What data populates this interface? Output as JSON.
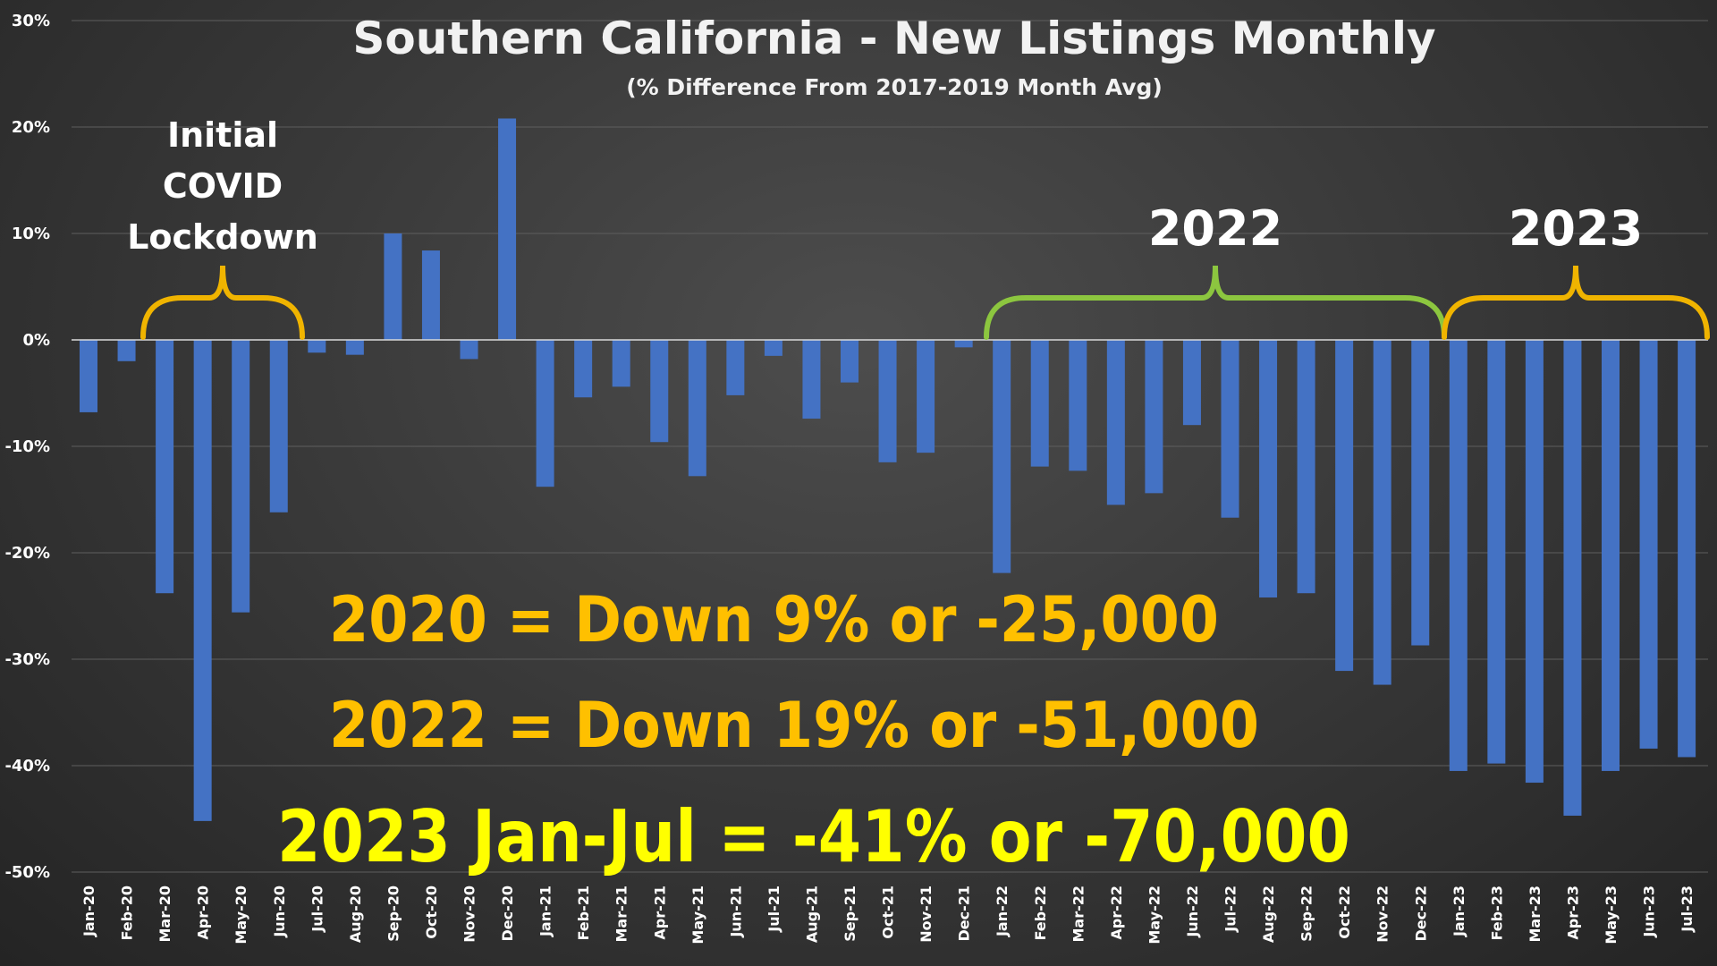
{
  "chart_data": {
    "type": "bar",
    "title": "Southern California - New Listings Monthly",
    "subtitle": "(% Difference From 2017-2019 Month Avg)",
    "ylim": [
      -50,
      30
    ],
    "yticks": [
      30,
      20,
      10,
      0,
      -10,
      -20,
      -30,
      -40,
      -50
    ],
    "ytick_labels": [
      "30%",
      "20%",
      "10%",
      "0%",
      "-10%",
      "-20%",
      "-30%",
      "-40%",
      "-50%"
    ],
    "grid": true,
    "bar_color": "#4472c4",
    "categories": [
      "Jan-20",
      "Feb-20",
      "Mar-20",
      "Apr-20",
      "May-20",
      "Jun-20",
      "Jul-20",
      "Aug-20",
      "Sep-20",
      "Oct-20",
      "Nov-20",
      "Dec-20",
      "Jan-21",
      "Feb-21",
      "Mar-21",
      "Apr-21",
      "May-21",
      "Jun-21",
      "Jul-21",
      "Aug-21",
      "Sep-21",
      "Oct-21",
      "Nov-21",
      "Dec-21",
      "Jan-22",
      "Feb-22",
      "Mar-22",
      "Apr-22",
      "May-22",
      "Jun-22",
      "Jul-22",
      "Aug-22",
      "Sep-22",
      "Oct-22",
      "Nov-22",
      "Dec-22",
      "Jan-23",
      "Feb-23",
      "Mar-23",
      "Apr-23",
      "May-23",
      "Jun-23",
      "Jul-23"
    ],
    "values": [
      -6.8,
      -2,
      -23.8,
      -45.2,
      -25.6,
      -16.2,
      -1.2,
      -1.4,
      10,
      8.4,
      -1.8,
      20.8,
      -13.8,
      -5.4,
      -4.4,
      -9.6,
      -12.8,
      -5.2,
      -1.5,
      -7.4,
      -4,
      -11.5,
      -10.6,
      -0.7,
      -21.9,
      -11.9,
      -12.3,
      -15.5,
      -14.4,
      -8,
      -16.7,
      -24.2,
      -23.8,
      -31.1,
      -32.4,
      -28.7,
      -40.5,
      -39.8,
      -41.6,
      -44.7,
      -40.5,
      -38.4,
      -39.2
    ],
    "annotations": {
      "covid": [
        "Initial",
        "COVID",
        "Lockdown"
      ],
      "label_2022": "2022",
      "label_2023": "2023",
      "stat_2020": "2020 = Down 9% or -25,000",
      "stat_2022": "2022 = Down 19% or -51,000",
      "stat_2023": "2023 Jan-Jul = -41% or -70,000"
    },
    "colors": {
      "brace_covid": "#f0b400",
      "brace_2022": "#8cc63f",
      "brace_2023": "#f0b400",
      "stat_2020": "#ffc000",
      "stat_2022": "#ffc000",
      "stat_2023": "#ffff00"
    }
  }
}
